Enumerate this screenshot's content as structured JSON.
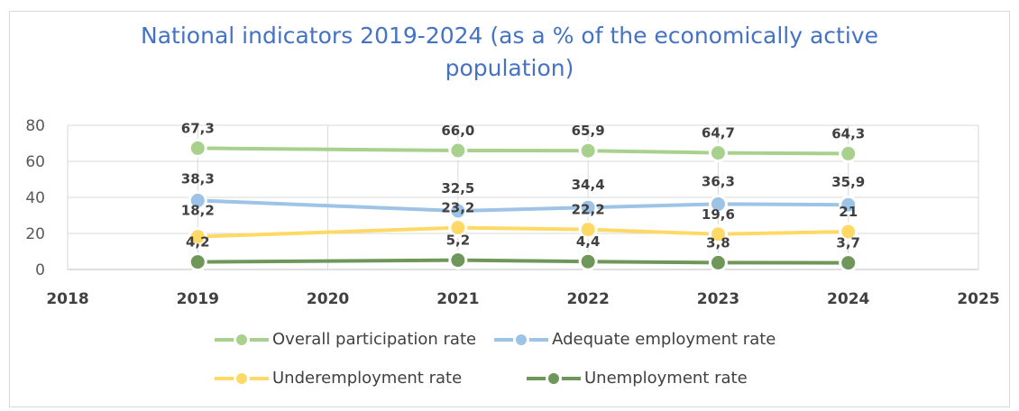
{
  "chart_data": {
    "type": "line",
    "title": "National indicators 2019-2024 (as a % of the economically active population)",
    "title_lines": [
      "National indicators 2019-2024 (as a % of the economically active",
      "population)"
    ],
    "xlabel": "",
    "ylabel": "",
    "xlim": [
      2018,
      2025
    ],
    "ylim": [
      0,
      80
    ],
    "x_ticks": [
      "2018",
      "2019",
      "2020",
      "2021",
      "2022",
      "2023",
      "2024",
      "2025"
    ],
    "y_ticks": [
      "0",
      "20",
      "40",
      "60",
      "80"
    ],
    "grid": true,
    "legend_position": "bottom",
    "x": [
      2019,
      2021,
      2022,
      2023,
      2024
    ],
    "series": [
      {
        "name": "Overall participation rate",
        "color": "#a9d18e",
        "values": [
          67.3,
          66.0,
          65.9,
          64.7,
          64.3
        ],
        "labels": [
          "67,3",
          "66,0",
          "65,9",
          "64,7",
          "64,3"
        ]
      },
      {
        "name": "Adequate employment rate",
        "color": "#9dc3e6",
        "values": [
          38.3,
          32.5,
          34.4,
          36.3,
          35.9
        ],
        "labels": [
          "38,3",
          "32,5",
          "34,4",
          "36,3",
          "35,9"
        ]
      },
      {
        "name": "Underemployment rate",
        "color": "#ffd966",
        "values": [
          18.2,
          23.2,
          22.2,
          19.6,
          21
        ],
        "labels": [
          "18,2",
          "23,2",
          "22,2",
          "19,6",
          "21"
        ]
      },
      {
        "name": "Unemployment rate",
        "color": "#70975a",
        "values": [
          4.2,
          5.2,
          4.4,
          3.8,
          3.7
        ],
        "labels": [
          "4,2",
          "5,2",
          "4,4",
          "3,8",
          "3,7"
        ]
      }
    ]
  }
}
